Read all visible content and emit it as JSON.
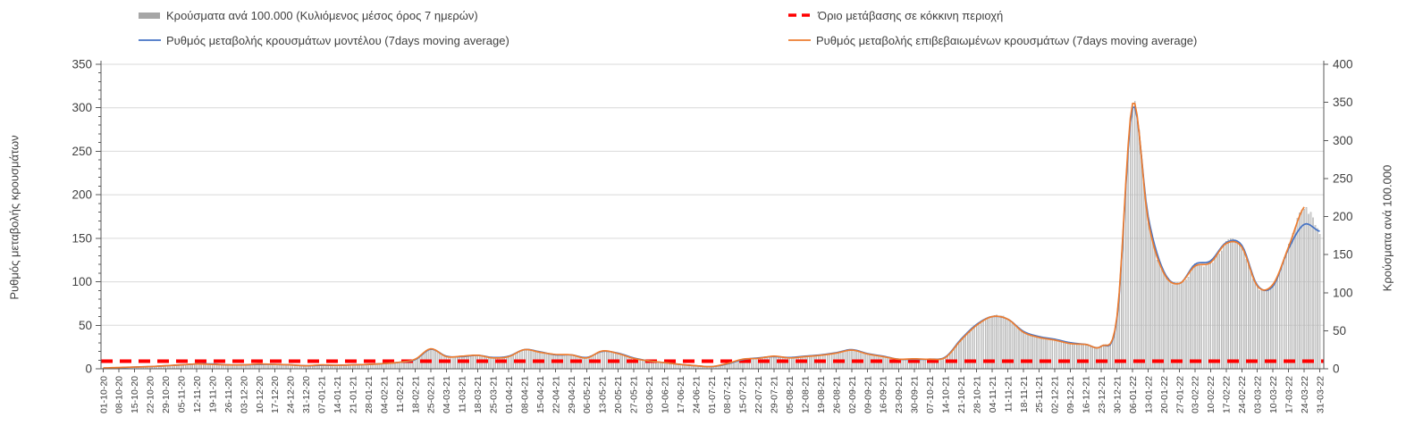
{
  "chart_data": {
    "type": "bar",
    "legend_position": "top",
    "grid": "horizontal gridlines every 50 (left axis)",
    "x": [
      "01-10-20",
      "08-10-20",
      "15-10-20",
      "22-10-20",
      "29-10-20",
      "05-11-20",
      "12-11-20",
      "19-11-20",
      "26-11-20",
      "03-12-20",
      "10-12-20",
      "17-12-20",
      "24-12-20",
      "31-12-20",
      "07-01-21",
      "14-01-21",
      "21-01-21",
      "28-01-21",
      "04-02-21",
      "11-02-21",
      "18-02-21",
      "25-02-21",
      "04-03-21",
      "11-03-21",
      "18-03-21",
      "25-03-21",
      "01-04-21",
      "08-04-21",
      "15-04-21",
      "22-04-21",
      "29-04-21",
      "06-05-21",
      "13-05-21",
      "20-05-21",
      "27-05-21",
      "03-06-21",
      "10-06-21",
      "17-06-21",
      "24-06-21",
      "01-07-21",
      "08-07-21",
      "15-07-21",
      "22-07-21",
      "29-07-21",
      "05-08-21",
      "12-08-21",
      "19-08-21",
      "26-08-21",
      "02-09-21",
      "09-09-21",
      "16-09-21",
      "23-09-21",
      "30-09-21",
      "07-10-21",
      "14-10-21",
      "21-10-21",
      "28-10-21",
      "04-11-21",
      "11-11-21",
      "18-11-21",
      "25-11-21",
      "02-12-21",
      "09-12-21",
      "16-12-21",
      "23-12-21",
      "30-12-21",
      "06-01-22",
      "13-01-22",
      "20-01-22",
      "27-01-22",
      "03-02-22",
      "10-02-22",
      "17-02-22",
      "24-02-22",
      "03-03-22",
      "10-03-22",
      "17-03-22",
      "24-03-22",
      "31-03-22"
    ],
    "series": [
      {
        "name": "Κρούσματα ανά 100.000 (Κυλιόμενος μέσος όρος 7 ημερών)",
        "type": "bar",
        "axis": "right",
        "color": "#A6A6A6",
        "values": [
          1,
          2,
          2,
          3,
          4,
          5,
          6,
          6,
          5,
          5,
          6,
          6,
          5,
          4,
          5,
          5,
          5,
          6,
          7,
          9,
          13,
          26,
          16,
          17,
          18,
          14,
          16,
          25,
          22,
          19,
          18,
          14,
          23,
          20,
          14,
          10,
          8,
          6,
          4,
          3,
          7,
          13,
          14,
          17,
          14,
          16,
          18,
          21,
          25,
          19,
          16,
          13,
          13,
          13,
          15,
          38,
          57,
          69,
          65,
          48,
          41,
          38,
          33,
          32,
          30,
          69,
          349,
          194,
          126,
          112,
          135,
          139,
          165,
          160,
          109,
          111,
          160,
          213,
          182
        ]
      },
      {
        "name": "Ρυθμός μεταβολής κρουσμάτων μοντέλου (7days moving average)",
        "type": "line",
        "axis": "left",
        "color": "#4472C4",
        "values": [
          0.5,
          1,
          2,
          2.5,
          3.5,
          4.5,
          5.5,
          5.5,
          4.5,
          4.5,
          5,
          5,
          4.5,
          3.5,
          4,
          4,
          4.5,
          5,
          6,
          7.5,
          10.5,
          22.5,
          14.5,
          14,
          15.5,
          13,
          14.5,
          22,
          19.5,
          16,
          16,
          13,
          20,
          18,
          12.5,
          9,
          7,
          5,
          3.5,
          2.5,
          5.5,
          10.5,
          12.5,
          14,
          13,
          14.5,
          16,
          18.5,
          22,
          17.5,
          14.5,
          11,
          11,
          11,
          13.5,
          34,
          51,
          60,
          57,
          43,
          37,
          34,
          30,
          28,
          26,
          58,
          300,
          175,
          112,
          98,
          120,
          124,
          145,
          142,
          96,
          95,
          138,
          166,
          158
        ]
      },
      {
        "name": "Ρυθμός μεταβολής επιβεβαιωμένων κρουσμάτων (7days moving average)",
        "type": "line",
        "axis": "left",
        "color": "#ED7D31",
        "values": [
          1,
          1.5,
          2,
          2.5,
          3.5,
          4.5,
          5.5,
          5,
          4.5,
          4.5,
          5.5,
          5,
          4.5,
          3.5,
          4.5,
          4,
          4.5,
          5,
          6,
          7.5,
          11,
          23,
          14,
          14.5,
          15.5,
          12.5,
          14,
          22,
          19,
          16.5,
          16,
          12.5,
          20.5,
          17.5,
          12,
          9,
          7,
          5,
          3.5,
          2.5,
          6,
          11,
          12,
          14.5,
          12.5,
          14,
          15.5,
          18,
          21.5,
          17,
          14,
          11,
          11.5,
          11,
          13,
          33,
          50,
          60,
          57,
          42,
          36,
          33,
          29,
          28,
          26,
          60,
          305,
          170,
          110,
          98,
          118,
          122,
          144,
          140,
          95,
          97,
          140,
          186,
          null
        ]
      },
      {
        "name": "Όριο μετάβασης σε κόκκινη περιοχή",
        "type": "threshold",
        "axis": "right",
        "color": "#FF0000",
        "value": 10
      }
    ],
    "left_axis": {
      "label": "Ρυθμός μεταβολής κρουσμάτων",
      "min": 0,
      "max": 350,
      "ticks": [
        0,
        50,
        100,
        150,
        200,
        250,
        300,
        350
      ],
      "minor_step": 10
    },
    "right_axis": {
      "label": "Κρούσματα ανά 100.000",
      "min": 0,
      "max": 400,
      "ticks": [
        0,
        50,
        100,
        150,
        200,
        250,
        300,
        350,
        400
      ]
    }
  },
  "colors": {
    "bars": "#C9C9C9",
    "bar_edge": "#909090",
    "model_line": "#4472C4",
    "confirmed_line": "#ED7D31",
    "threshold": "#FF0000",
    "grid": "#D9D9D9",
    "axis": "#595959",
    "text": "#404040"
  }
}
